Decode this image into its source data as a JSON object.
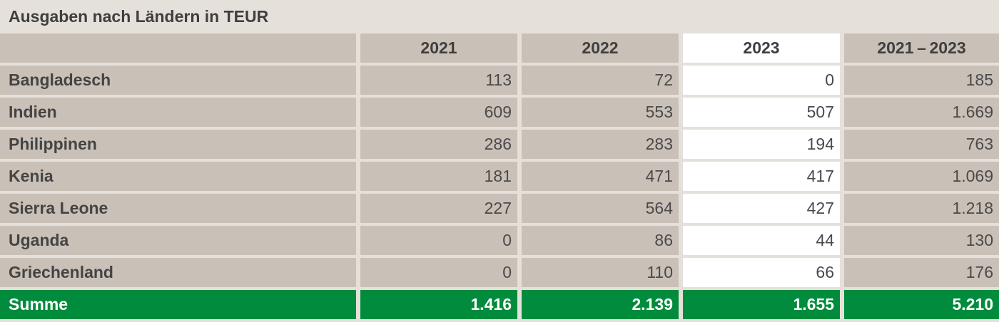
{
  "title": "Ausgaben nach Ländern in TEUR",
  "columns": [
    "",
    "2021",
    "2022",
    "2023",
    "2021 – 2023"
  ],
  "rows": [
    {
      "label": "Bangladesch",
      "values": [
        "113",
        "72",
        "0",
        "185"
      ]
    },
    {
      "label": "Indien",
      "values": [
        "609",
        "553",
        "507",
        "1.669"
      ]
    },
    {
      "label": "Philippinen",
      "values": [
        "286",
        "283",
        "194",
        "763"
      ]
    },
    {
      "label": "Kenia",
      "values": [
        "181",
        "471",
        "417",
        "1.069"
      ]
    },
    {
      "label": "Sierra Leone",
      "values": [
        "227",
        "564",
        "427",
        "1.218"
      ]
    },
    {
      "label": "Uganda",
      "values": [
        "0",
        "86",
        "44",
        "130"
      ]
    },
    {
      "label": "Griechenland",
      "values": [
        "0",
        "110",
        "66",
        "176"
      ]
    }
  ],
  "total": {
    "label": "Summe",
    "values": [
      "1.416",
      "2.139",
      "1.655",
      "5.210"
    ]
  },
  "colors": {
    "background": "#e6e0da",
    "cell": "#c9c1b8",
    "highlight_column": "#ffffff",
    "total_row": "#008c3c",
    "total_text": "#ffffff"
  }
}
